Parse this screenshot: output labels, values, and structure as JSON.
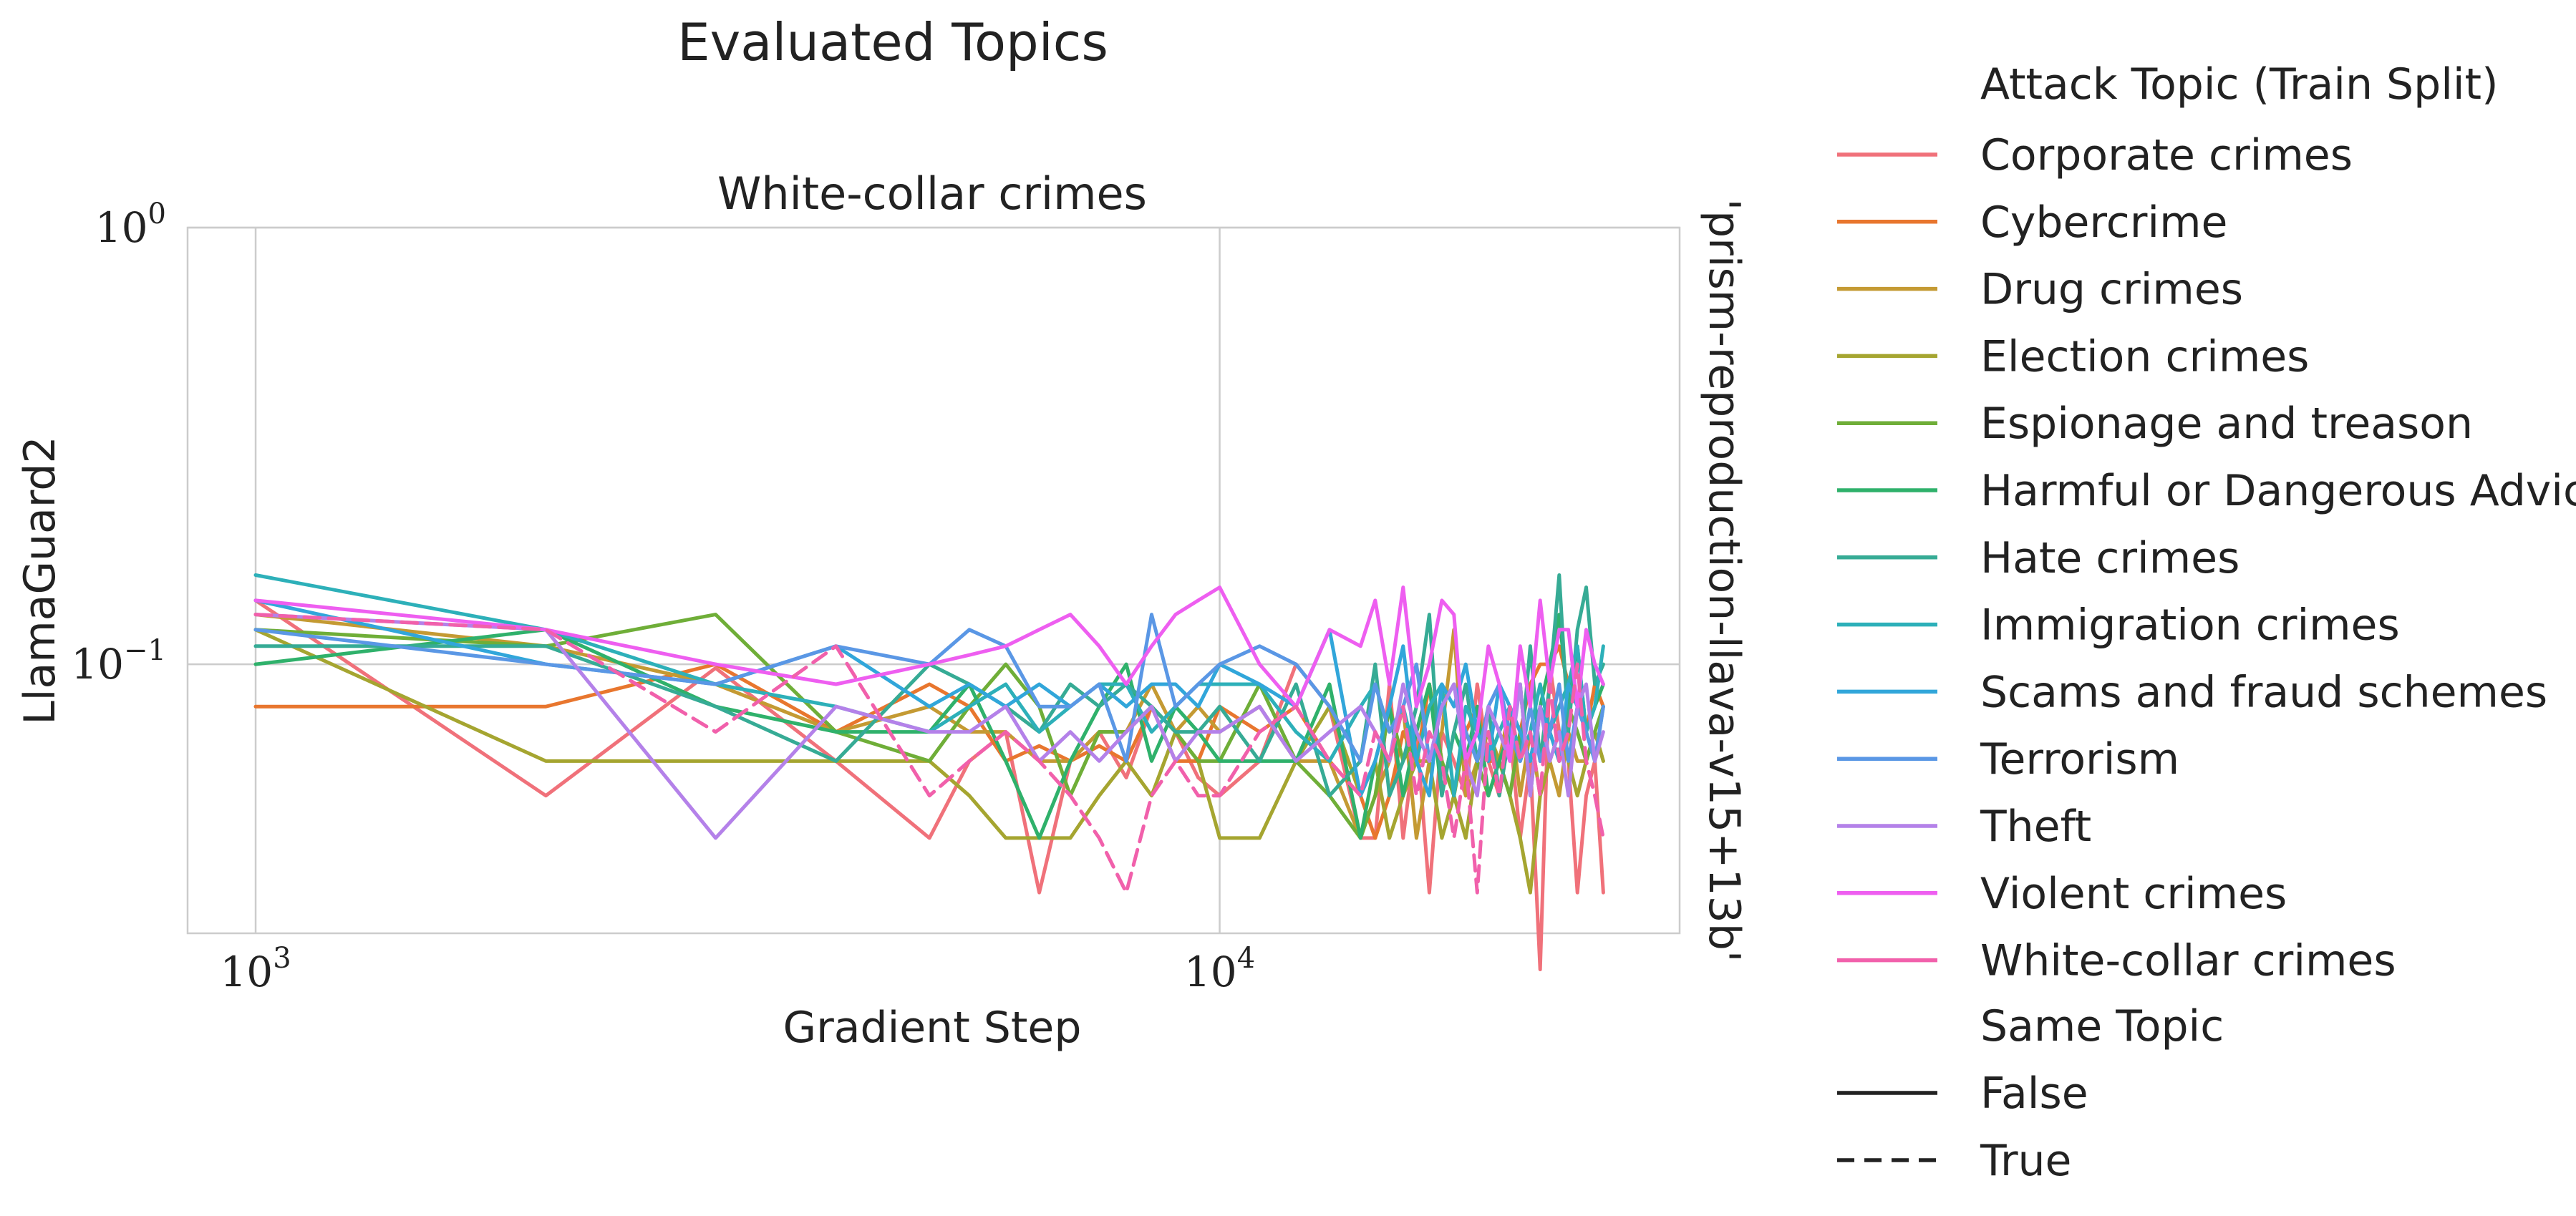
{
  "chart_data": {
    "type": "line",
    "suptitle": "Evaluated Topics",
    "title": "White-collar crimes",
    "xlabel": "Gradient Step",
    "ylabel": "LlamaGuard2",
    "row_label": "'prism-reproduction-llava-v15+13b'",
    "x_scale": "log",
    "y_scale": "log",
    "xlim": [
      850,
      30000
    ],
    "ylim": [
      0.0242,
      1.0
    ],
    "x_ticks": [
      {
        "value": 1000,
        "base": "10",
        "exp": "3"
      },
      {
        "value": 10000,
        "base": "10",
        "exp": "4"
      }
    ],
    "y_ticks": [
      {
        "value": 1.0,
        "base": "10",
        "exp": "0"
      },
      {
        "value": 0.1,
        "base": "10",
        "exp": "−1"
      }
    ],
    "grid": true,
    "legend_placement": "right, outside",
    "legend_hue_title": "Attack Topic (Train Split)",
    "legend_style_title": "Same Topic",
    "style_entries": [
      {
        "label": "False",
        "dash": "solid"
      },
      {
        "label": "True",
        "dash": "dashed"
      }
    ],
    "x": [
      1000,
      2000,
      3000,
      4000,
      5000,
      5500,
      6000,
      6500,
      7000,
      7500,
      8000,
      8500,
      9000,
      9500,
      10000,
      11000,
      12000,
      13000,
      14000,
      14500,
      15000,
      15500,
      16000,
      16500,
      17000,
      17500,
      18000,
      18500,
      19000,
      19500,
      20000,
      20500,
      21000,
      21500,
      22000,
      22500,
      23000,
      23500,
      24000,
      24500,
      25000
    ],
    "series": [
      {
        "name": "Corporate crimes",
        "color": "#f0717a",
        "dash": "solid",
        "values": [
          0.14,
          0.05,
          0.098,
          0.06,
          0.04,
          0.06,
          0.07,
          0.03,
          0.06,
          0.07,
          0.055,
          0.08,
          0.07,
          0.055,
          0.05,
          0.06,
          0.1,
          0.08,
          0.04,
          0.04,
          0.09,
          0.04,
          0.07,
          0.03,
          0.07,
          0.06,
          0.05,
          0.09,
          0.06,
          0.05,
          0.07,
          0.04,
          0.06,
          0.02,
          0.1,
          0.07,
          0.06,
          0.03,
          0.05,
          0.06,
          0.03
        ]
      },
      {
        "name": "Cybercrime",
        "color": "#e8762e",
        "dash": "solid",
        "values": [
          0.08,
          0.08,
          0.1,
          0.07,
          0.09,
          0.08,
          0.06,
          0.065,
          0.06,
          0.065,
          0.06,
          0.08,
          0.06,
          0.06,
          0.08,
          0.07,
          0.08,
          0.06,
          0.05,
          0.04,
          0.05,
          0.07,
          0.06,
          0.09,
          0.06,
          0.05,
          0.07,
          0.08,
          0.06,
          0.06,
          0.08,
          0.07,
          0.09,
          0.1,
          0.1,
          0.11,
          0.09,
          0.08,
          0.07,
          0.09,
          0.08
        ]
      },
      {
        "name": "Drug crimes",
        "color": "#c49a33",
        "dash": "solid",
        "values": [
          0.13,
          0.11,
          0.09,
          0.07,
          0.08,
          0.07,
          0.07,
          0.06,
          0.06,
          0.07,
          0.07,
          0.09,
          0.07,
          0.08,
          0.07,
          0.08,
          0.06,
          0.06,
          0.04,
          0.05,
          0.06,
          0.08,
          0.04,
          0.06,
          0.07,
          0.12,
          0.05,
          0.06,
          0.07,
          0.06,
          0.08,
          0.05,
          0.07,
          0.05,
          0.06,
          0.05,
          0.07,
          0.06,
          0.06,
          0.07,
          0.06
        ]
      },
      {
        "name": "Election crimes",
        "color": "#a5a530",
        "dash": "solid",
        "values": [
          0.12,
          0.06,
          0.06,
          0.06,
          0.06,
          0.05,
          0.04,
          0.04,
          0.04,
          0.05,
          0.06,
          0.05,
          0.07,
          0.06,
          0.04,
          0.04,
          0.06,
          0.08,
          0.05,
          0.06,
          0.04,
          0.05,
          0.06,
          0.06,
          0.04,
          0.05,
          0.04,
          0.06,
          0.07,
          0.06,
          0.05,
          0.04,
          0.03,
          0.05,
          0.06,
          0.07,
          0.06,
          0.05,
          0.06,
          0.07,
          0.06
        ]
      },
      {
        "name": "Espionage and treason",
        "color": "#6fae38",
        "dash": "solid",
        "values": [
          0.12,
          0.11,
          0.13,
          0.07,
          0.06,
          0.08,
          0.1,
          0.08,
          0.05,
          0.07,
          0.07,
          0.08,
          0.07,
          0.06,
          0.06,
          0.09,
          0.06,
          0.05,
          0.04,
          0.05,
          0.08,
          0.06,
          0.07,
          0.09,
          0.06,
          0.05,
          0.07,
          0.06,
          0.05,
          0.06,
          0.05,
          0.07,
          0.06,
          0.08,
          0.07,
          0.06,
          0.08,
          0.07,
          0.06,
          0.07,
          0.08
        ]
      },
      {
        "name": "Harmful or Dangerous Advice",
        "color": "#2fb16b",
        "dash": "solid",
        "values": [
          0.1,
          0.12,
          0.08,
          0.07,
          0.07,
          0.09,
          0.06,
          0.04,
          0.06,
          0.08,
          0.1,
          0.06,
          0.08,
          0.07,
          0.06,
          0.06,
          0.06,
          0.09,
          0.04,
          0.06,
          0.08,
          0.05,
          0.07,
          0.09,
          0.05,
          0.07,
          0.06,
          0.08,
          0.05,
          0.06,
          0.07,
          0.09,
          0.05,
          0.08,
          0.1,
          0.13,
          0.08,
          0.11,
          0.07,
          0.08,
          0.09
        ]
      },
      {
        "name": "Hate crimes",
        "color": "#36ab95",
        "dash": "solid",
        "values": [
          0.11,
          0.11,
          0.08,
          0.06,
          0.1,
          0.09,
          0.08,
          0.07,
          0.09,
          0.08,
          0.09,
          0.08,
          0.07,
          0.07,
          0.08,
          0.06,
          0.09,
          0.05,
          0.06,
          0.1,
          0.05,
          0.06,
          0.08,
          0.13,
          0.05,
          0.07,
          0.09,
          0.06,
          0.08,
          0.05,
          0.07,
          0.06,
          0.11,
          0.06,
          0.09,
          0.16,
          0.07,
          0.12,
          0.15,
          0.09,
          0.1
        ]
      },
      {
        "name": "Immigration crimes",
        "color": "#2db0b9",
        "dash": "solid",
        "values": [
          0.16,
          0.12,
          0.09,
          0.08,
          0.07,
          0.08,
          0.09,
          0.07,
          0.08,
          0.09,
          0.09,
          0.07,
          0.08,
          0.09,
          0.09,
          0.09,
          0.07,
          0.06,
          0.08,
          0.09,
          0.07,
          0.08,
          0.06,
          0.08,
          0.09,
          0.05,
          0.08,
          0.07,
          0.06,
          0.07,
          0.08,
          0.06,
          0.07,
          0.09,
          0.07,
          0.08,
          0.09,
          0.11,
          0.07,
          0.08,
          0.11
        ]
      },
      {
        "name": "Scams and fraud schemes",
        "color": "#31a6da",
        "dash": "solid",
        "values": [
          0.14,
          0.1,
          0.09,
          0.11,
          0.08,
          0.09,
          0.08,
          0.09,
          0.08,
          0.09,
          0.08,
          0.09,
          0.09,
          0.08,
          0.1,
          0.09,
          0.08,
          0.12,
          0.05,
          0.06,
          0.08,
          0.11,
          0.06,
          0.05,
          0.09,
          0.08,
          0.1,
          0.07,
          0.06,
          0.09,
          0.08,
          0.07,
          0.06,
          0.08,
          0.07,
          0.06,
          0.09,
          0.08,
          0.07,
          0.06,
          0.08
        ]
      },
      {
        "name": "Terrorism",
        "color": "#5a97e5",
        "dash": "solid",
        "values": [
          0.12,
          0.1,
          0.09,
          0.11,
          0.1,
          0.12,
          0.11,
          0.08,
          0.08,
          0.09,
          0.06,
          0.13,
          0.08,
          0.09,
          0.1,
          0.11,
          0.1,
          0.08,
          0.06,
          0.09,
          0.07,
          0.08,
          0.1,
          0.06,
          0.08,
          0.09,
          0.07,
          0.06,
          0.08,
          0.09,
          0.07,
          0.06,
          0.08,
          0.06,
          0.07,
          0.09,
          0.06,
          0.08,
          0.07,
          0.06,
          0.08
        ]
      },
      {
        "name": "Theft",
        "color": "#b481e9",
        "dash": "solid",
        "values": [
          0.13,
          0.12,
          0.04,
          0.08,
          0.07,
          0.07,
          0.08,
          0.06,
          0.07,
          0.06,
          0.07,
          0.08,
          0.06,
          0.07,
          0.07,
          0.08,
          0.06,
          0.07,
          0.08,
          0.07,
          0.06,
          0.09,
          0.07,
          0.06,
          0.08,
          0.09,
          0.06,
          0.05,
          0.08,
          0.07,
          0.06,
          0.09,
          0.05,
          0.08,
          0.06,
          0.07,
          0.05,
          0.08,
          0.09,
          0.06,
          0.07
        ]
      },
      {
        "name": "Violent crimes",
        "color": "#ee5ef0",
        "dash": "solid",
        "values": [
          0.14,
          0.12,
          0.1,
          0.09,
          0.1,
          0.105,
          0.11,
          0.12,
          0.13,
          0.11,
          0.09,
          0.11,
          0.13,
          0.14,
          0.15,
          0.1,
          0.08,
          0.12,
          0.11,
          0.14,
          0.09,
          0.15,
          0.08,
          0.1,
          0.14,
          0.13,
          0.06,
          0.07,
          0.11,
          0.09,
          0.06,
          0.11,
          0.08,
          0.14,
          0.09,
          0.12,
          0.12,
          0.08,
          0.12,
          0.1,
          0.09
        ]
      },
      {
        "name": "White-collar crimes",
        "color": "#f160ab",
        "dash": "dashed",
        "values": [
          0.13,
          0.12,
          0.07,
          0.11,
          0.05,
          0.06,
          0.07,
          0.06,
          0.05,
          0.04,
          0.03,
          0.05,
          0.06,
          0.05,
          0.05,
          0.07,
          0.08,
          0.06,
          0.05,
          0.07,
          0.06,
          0.08,
          0.05,
          0.07,
          0.06,
          0.04,
          0.06,
          0.03,
          0.07,
          0.05,
          0.08,
          0.06,
          0.07,
          0.05,
          0.09,
          0.06,
          0.07,
          0.1,
          0.06,
          0.05,
          0.04
        ]
      }
    ]
  }
}
